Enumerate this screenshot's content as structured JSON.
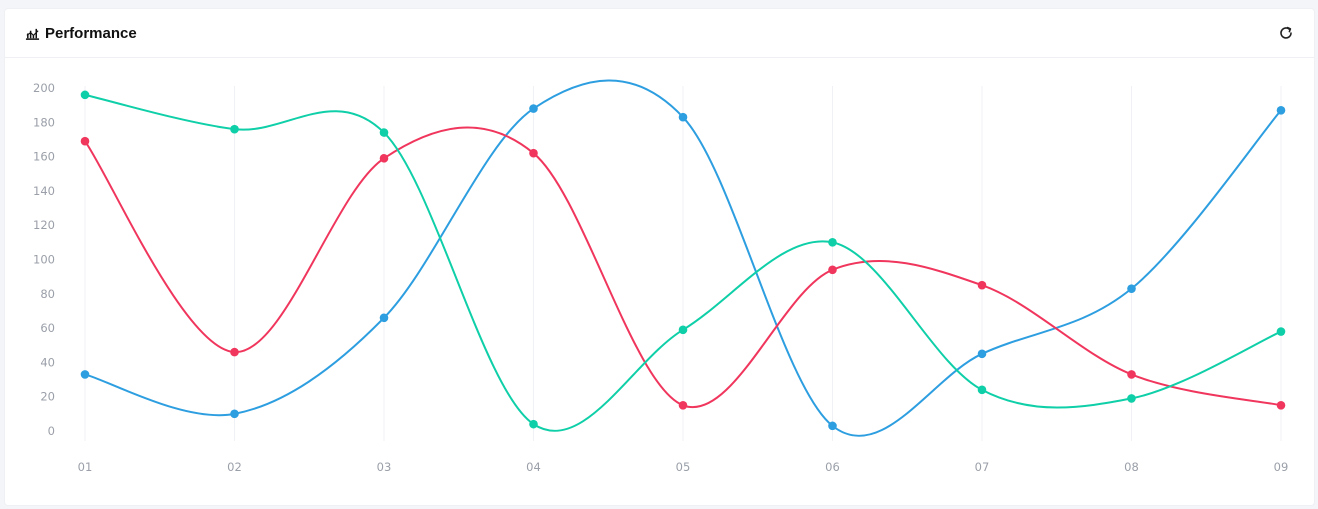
{
  "header": {
    "title": "Performance",
    "title_icon": "chart-icon",
    "refresh_icon": "refresh-icon"
  },
  "chart_data": {
    "type": "line",
    "smooth": true,
    "x": [
      "01",
      "02",
      "03",
      "04",
      "05",
      "06",
      "07",
      "08",
      "09"
    ],
    "ylim": [
      0,
      200
    ],
    "yticks": [
      0,
      20,
      40,
      60,
      80,
      100,
      120,
      140,
      160,
      180,
      200
    ],
    "grid": "vertical",
    "legend": "none",
    "series": [
      {
        "color": "#2d9ee0",
        "values": [
          33,
          10,
          66,
          188,
          183,
          3,
          45,
          83,
          187
        ]
      },
      {
        "color": "#f0365d",
        "values": [
          169,
          46,
          159,
          162,
          15,
          94,
          85,
          33,
          15
        ]
      },
      {
        "color": "#0fcfa8",
        "values": [
          196,
          176,
          174,
          4,
          59,
          110,
          24,
          19,
          58
        ]
      }
    ]
  }
}
